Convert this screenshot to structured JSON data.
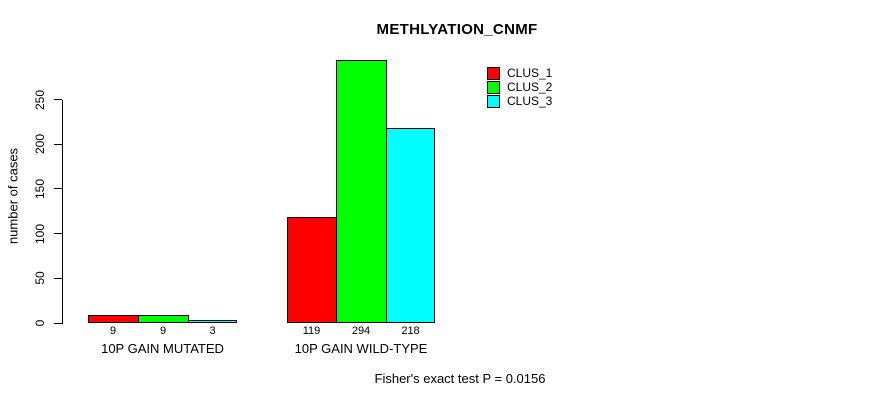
{
  "title": "METHLYATION_CNMF",
  "footer": "Fisher's exact test P = 0.0156",
  "y_axis": {
    "label": "number of cases",
    "ticks": [
      0,
      50,
      100,
      150,
      200,
      250
    ]
  },
  "legend": {
    "position": "top-right",
    "items": [
      {
        "label": "CLUS_1",
        "color": "#ff0000"
      },
      {
        "label": "CLUS_2",
        "color": "#00ff00"
      },
      {
        "label": "CLUS_3",
        "color": "#00ffff"
      }
    ]
  },
  "chart_data": {
    "type": "bar",
    "title": "METHLYATION_CNMF",
    "xlabel": "",
    "ylabel": "number of cases",
    "categories": [
      "10P GAIN MUTATED",
      "10P GAIN WILD-TYPE"
    ],
    "series": [
      {
        "name": "CLUS_1",
        "color": "#ff0000",
        "values": [
          9,
          119
        ]
      },
      {
        "name": "CLUS_2",
        "color": "#00ff00",
        "values": [
          9,
          294
        ]
      },
      {
        "name": "CLUS_3",
        "color": "#00ffff",
        "values": [
          3,
          218
        ]
      }
    ],
    "bar_value_labels": [
      [
        "9",
        "9",
        "3"
      ],
      [
        "119",
        "294",
        "218"
      ]
    ],
    "yticks": [
      0,
      50,
      100,
      150,
      200,
      250
    ],
    "ylim": [
      0,
      294
    ],
    "grid": false,
    "legend_position": "top-right",
    "annotation": "Fisher's exact test P = 0.0156"
  }
}
